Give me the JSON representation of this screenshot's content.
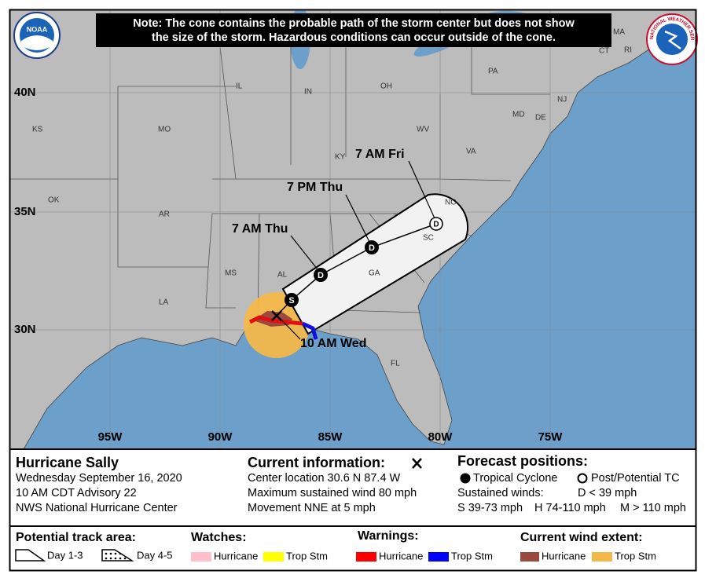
{
  "logos": {
    "noaa": "NOAA",
    "nws": "NATIONAL WEATHER SERVICE"
  },
  "note": [
    "Note: The cone contains the probable path of the storm center but does not show",
    "the size of the storm. Hazardous conditions can occur outside of the cone."
  ],
  "map": {
    "lat_labels": [
      "40N",
      "35N",
      "30N"
    ],
    "lon_labels": [
      "95W",
      "90W",
      "85W",
      "80W",
      "75W"
    ],
    "states": [
      "IL",
      "IN",
      "OH",
      "PA",
      "NJ",
      "DE",
      "MD",
      "KS",
      "MO",
      "WV",
      "KY",
      "VA",
      "OK",
      "AR",
      "NC",
      "SC",
      "MS",
      "AL",
      "GA",
      "LA",
      "FL",
      "MA",
      "CT",
      "RI"
    ],
    "forecast_times": [
      "7 AM Fri",
      "7 PM Thu",
      "7 AM Thu",
      "10 AM Wed"
    ],
    "track_points": [
      "S",
      "D",
      "D",
      "D"
    ]
  },
  "storm": {
    "name": "Hurricane Sally",
    "lines": [
      "Wednesday September 16, 2020",
      "10 AM CDT Advisory 22",
      "NWS National Hurricane Center"
    ]
  },
  "current": {
    "title": "Current information:",
    "lines": [
      "Center location 30.6 N 87.4 W",
      "Maximum sustained wind 80 mph",
      "Movement NNE at 5 mph"
    ]
  },
  "forecast": {
    "title": "Forecast positions:",
    "tropical": "Tropical Cyclone",
    "post": "Post/Potential TC",
    "winds": "Sustained winds:",
    "d": "D < 39 mph",
    "s": "S 39-73 mph",
    "h": "H 74-110 mph",
    "m": "M > 110 mph"
  },
  "legend": {
    "track": {
      "title": "Potential track area:",
      "day13": "Day 1-3",
      "day45": "Day 4-5"
    },
    "watches": {
      "title": "Watches:",
      "hurricane": "Hurricane",
      "trop": "Trop Stm"
    },
    "warnings": {
      "title": "Warnings:",
      "hurricane": "Hurricane",
      "trop": "Trop Stm"
    },
    "wind": {
      "title": "Current wind extent:",
      "hurricane": "Hurricane",
      "trop": "Trop Stm"
    }
  }
}
